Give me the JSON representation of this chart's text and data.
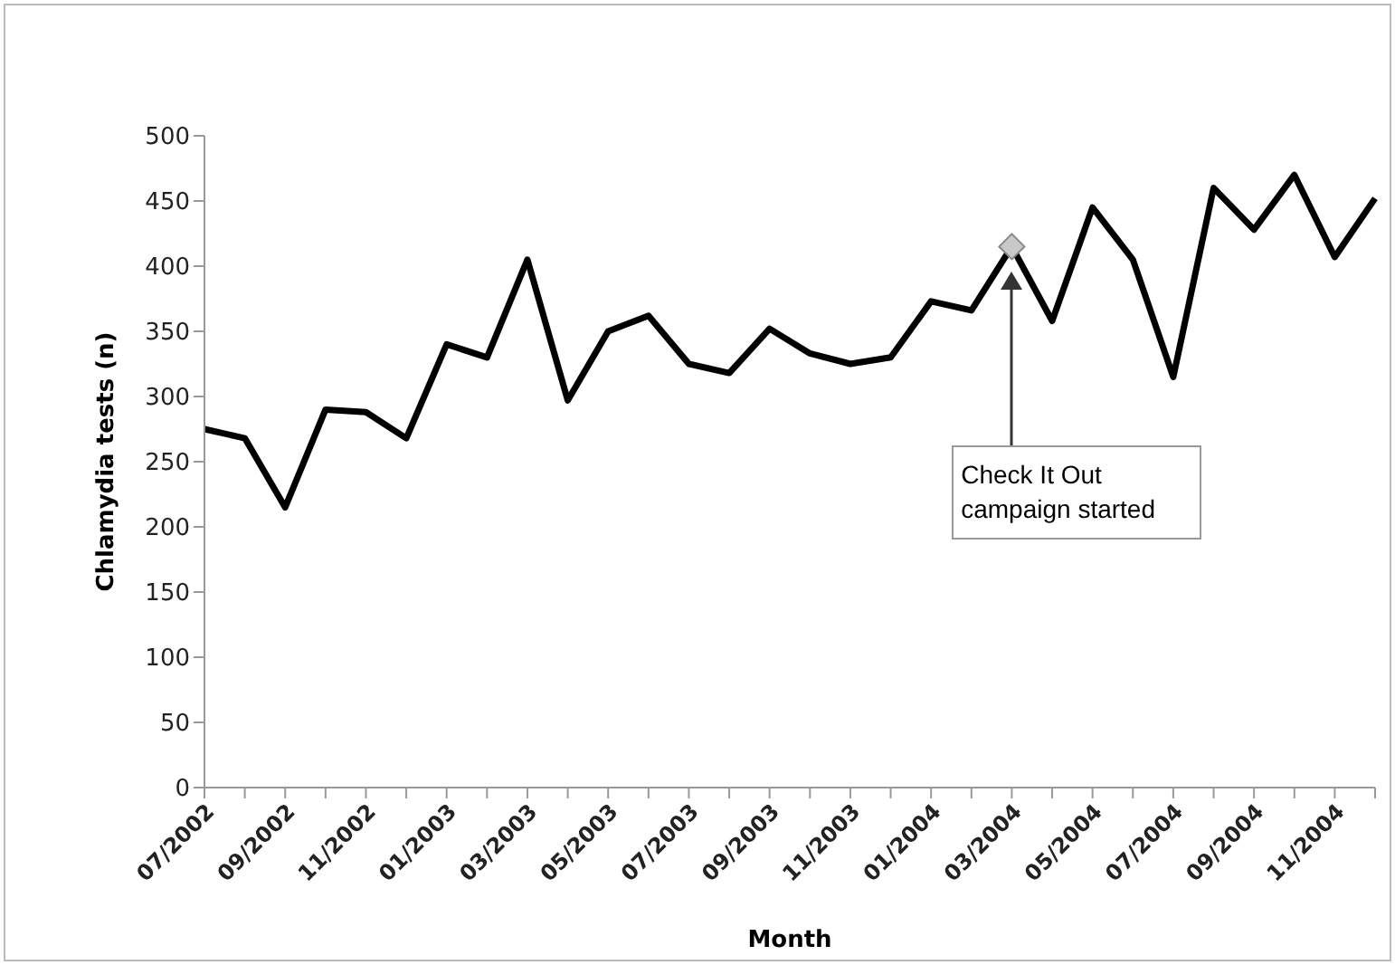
{
  "chart_data": {
    "type": "line",
    "xlabel": "Month",
    "ylabel": "Chlamydia tests (n)",
    "categories": [
      "07/2002",
      null,
      "09/2002",
      null,
      "11/2002",
      null,
      "01/2003",
      null,
      "03/2003",
      null,
      "05/2003",
      null,
      "07/2003",
      null,
      "09/2003",
      null,
      "11/2003",
      null,
      "01/2004",
      null,
      "03/2004",
      null,
      "05/2004",
      null,
      "07/2004",
      null,
      "09/2004",
      null,
      "11/2004",
      null
    ],
    "series": [
      {
        "color": "#000000",
        "values": [
          275,
          268,
          215,
          290,
          288,
          268,
          340,
          330,
          405,
          297,
          350,
          362,
          325,
          318,
          352,
          333,
          325,
          330,
          373,
          366,
          415,
          358,
          445,
          405,
          315,
          460,
          428,
          470,
          407,
          452
        ]
      },
      {
        "type": "scatter",
        "color": "#c8c8c8",
        "marker": "diamond",
        "x": [
          "03/2004"
        ],
        "values": [
          415
        ]
      }
    ],
    "ylim": [
      0,
      500
    ],
    "yticks": [
      0,
      50,
      100,
      150,
      200,
      250,
      300,
      350,
      400,
      450,
      500
    ],
    "grid": false,
    "marker": "none",
    "line_style": "solid",
    "annotations": [
      "Check It Out campaign started"
    ]
  }
}
